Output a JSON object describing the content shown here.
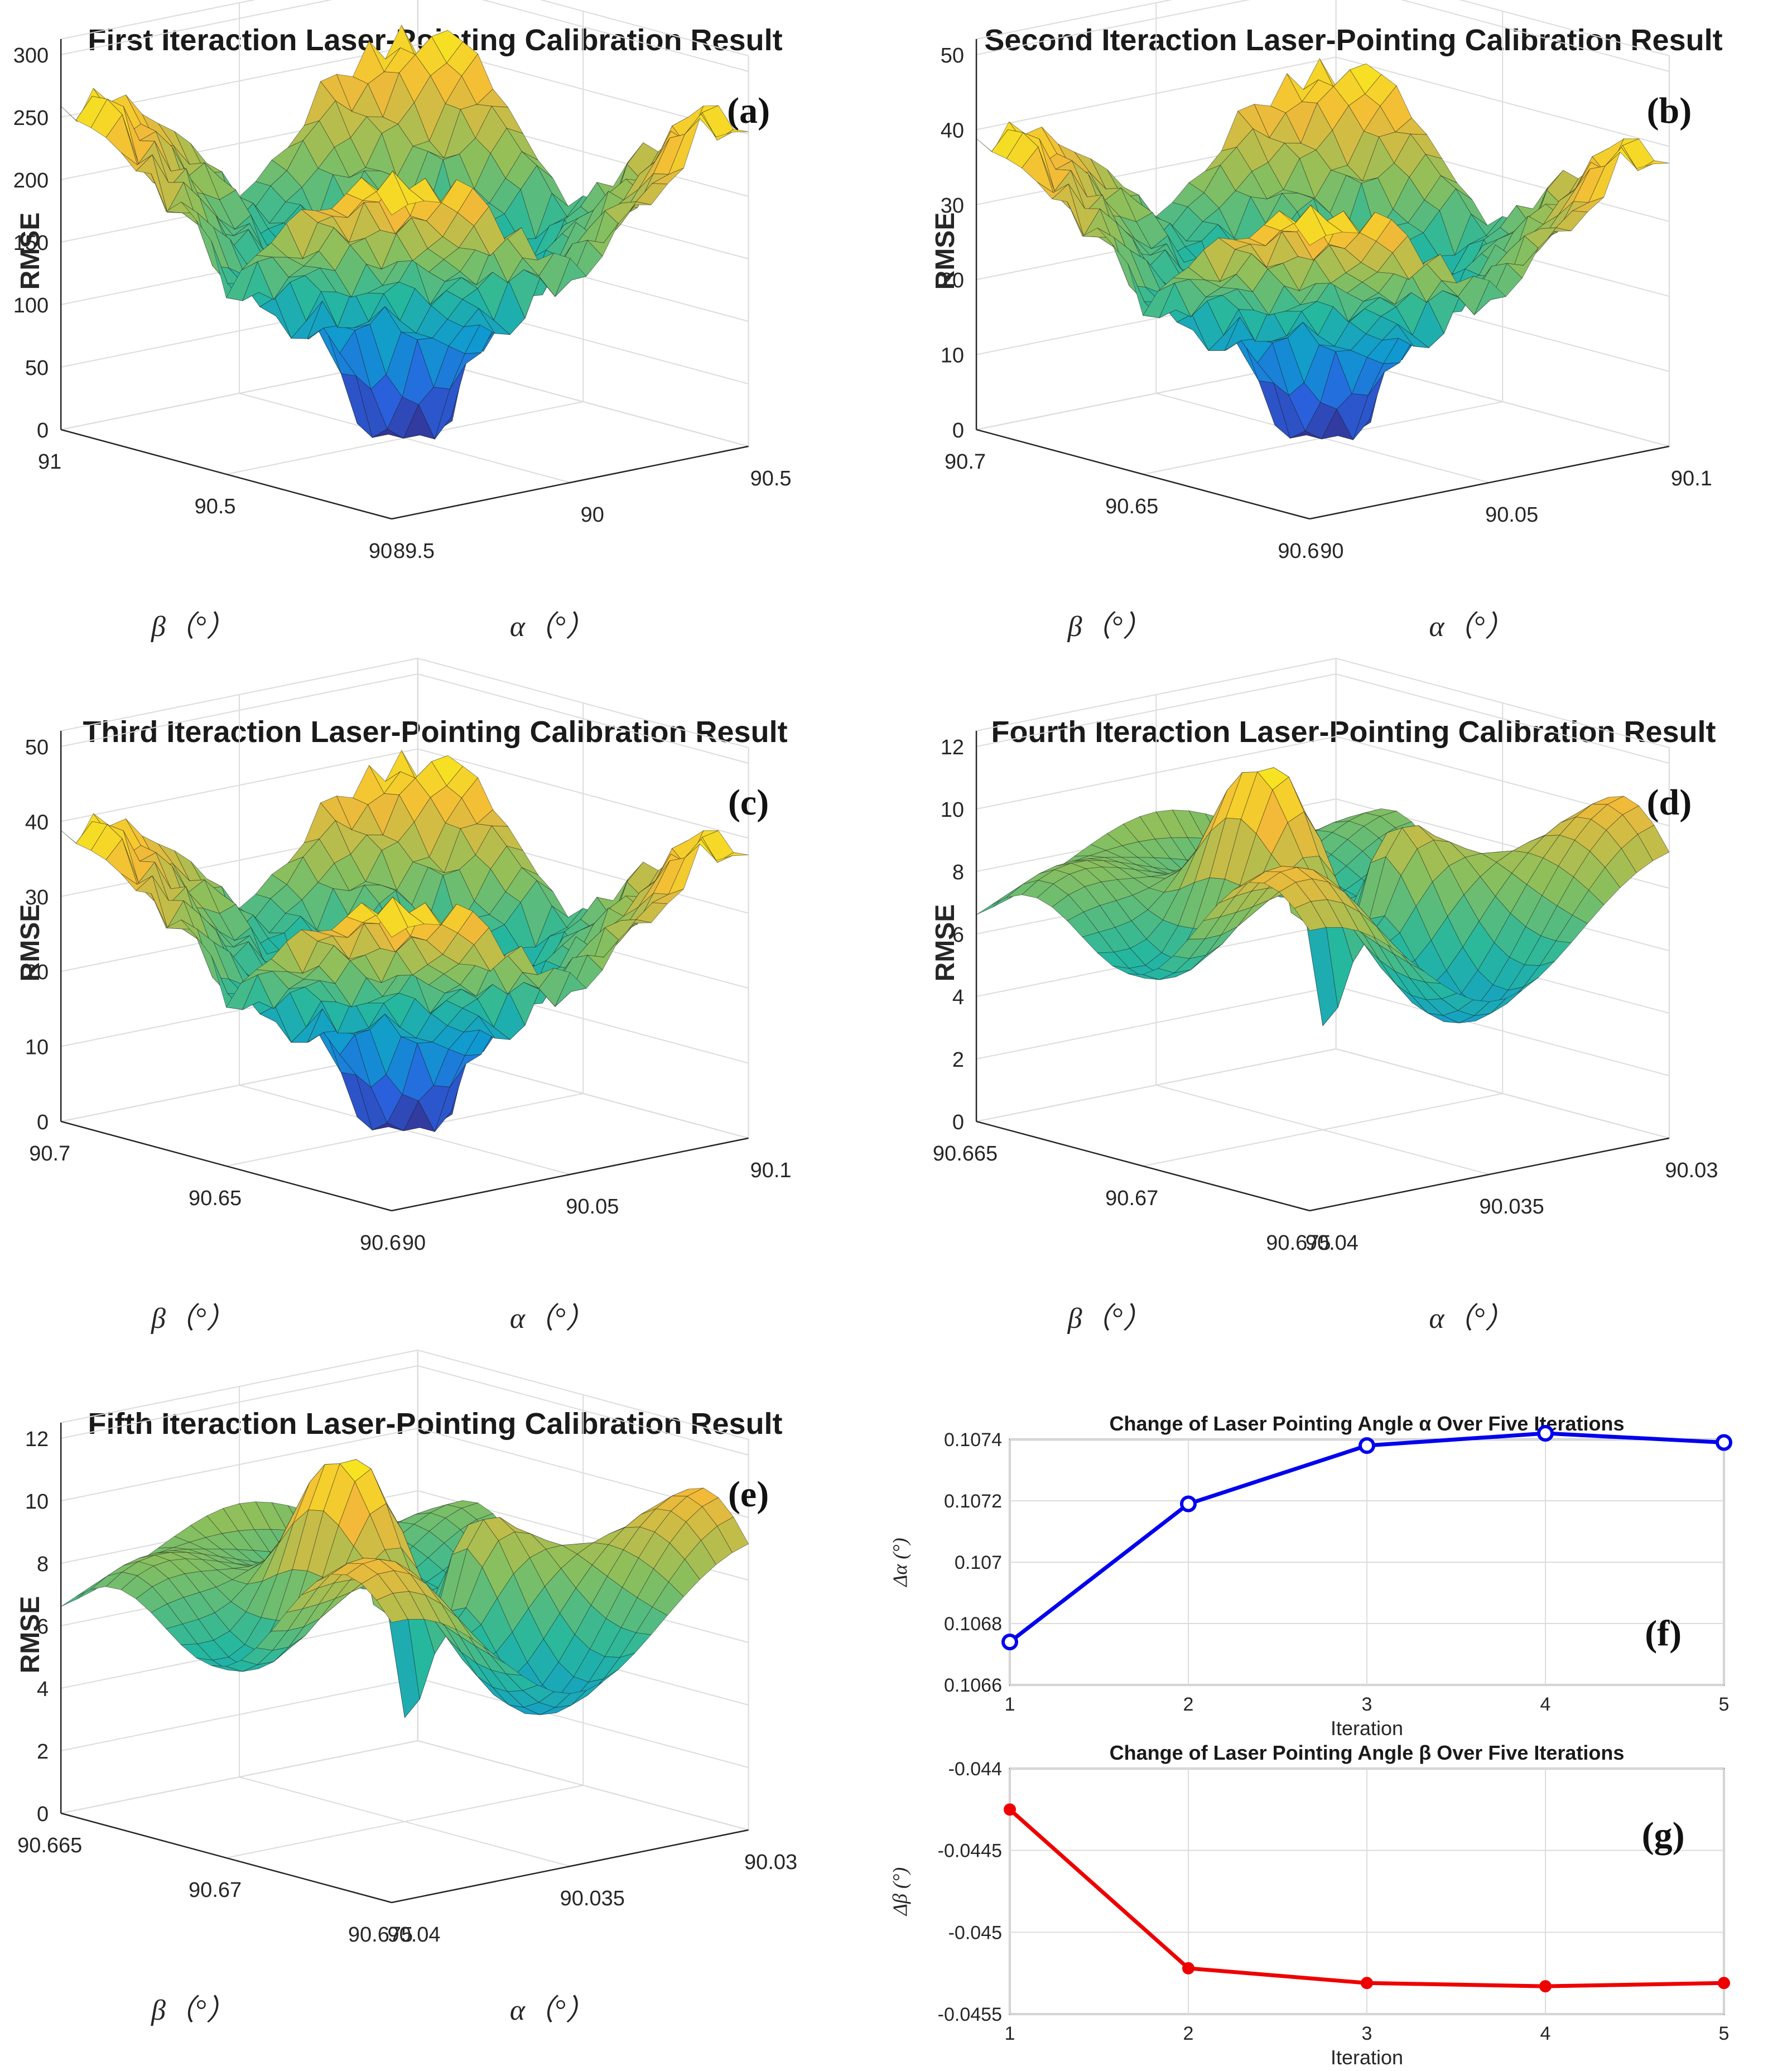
{
  "chart_data": [
    {
      "id": "a",
      "type": "surface",
      "title": "First Iteraction Laser-Pointing Calibration Result",
      "panel_letter": "(a)",
      "zlabel": "RMSE",
      "xlabel": "β（°）",
      "ylabel": "α（°）",
      "zlim": [
        0,
        300
      ],
      "zticks": [
        "0",
        "50",
        "100",
        "150",
        "200",
        "250",
        "300"
      ],
      "beta_ticks": [
        "91",
        "90.5",
        "90"
      ],
      "alpha_ticks": [
        "89.5",
        "90",
        "90.5"
      ],
      "surface_max": 280,
      "min_rmse": 20,
      "style": "rough"
    },
    {
      "id": "b",
      "type": "surface",
      "title": "Second Iteraction Laser-Pointing Calibration Result",
      "panel_letter": "(b)",
      "zlabel": "RMSE",
      "xlabel": "β（°）",
      "ylabel": "α（°）",
      "zlim": [
        0,
        50
      ],
      "zticks": [
        "0",
        "10",
        "20",
        "30",
        "40",
        "50"
      ],
      "beta_ticks": [
        "90.7",
        "90.65",
        "90.6"
      ],
      "alpha_ticks": [
        "90",
        "90.05",
        "90.1"
      ],
      "surface_max": 42,
      "min_rmse": 0,
      "style": "rough"
    },
    {
      "id": "c",
      "type": "surface",
      "title": "Third Iteraction Laser-Pointing Calibration Result",
      "panel_letter": "(c)",
      "zlabel": "RMSE",
      "xlabel": "β（°）",
      "ylabel": "α（°）",
      "zlim": [
        0,
        50
      ],
      "zticks": [
        "0",
        "10",
        "20",
        "30",
        "40",
        "50"
      ],
      "beta_ticks": [
        "90.7",
        "90.65",
        "90.6"
      ],
      "alpha_ticks": [
        "90",
        "90.05",
        "90.1"
      ],
      "surface_max": 42,
      "min_rmse": 0,
      "style": "rough"
    },
    {
      "id": "d",
      "type": "surface",
      "title": "Fourth Iteraction Laser-Pointing Calibration Result",
      "panel_letter": "(d)",
      "zlabel": "RMSE",
      "xlabel": "β（°）",
      "ylabel": "α（°）",
      "zlim": [
        0,
        12
      ],
      "zticks": [
        "0",
        "2",
        "4",
        "6",
        "8",
        "10",
        "12"
      ],
      "beta_ticks": [
        "90.665",
        "90.67",
        "90.675"
      ],
      "alpha_ticks": [
        "90.04",
        "90.035",
        "90.03"
      ],
      "surface_max": 12.5,
      "min_rmse": 0.8,
      "style": "smooth"
    },
    {
      "id": "e",
      "type": "surface",
      "title": "Fifth Iteraction Laser-Pointing Calibration Result",
      "panel_letter": "(e)",
      "zlabel": "RMSE",
      "xlabel": "β（°）",
      "ylabel": "α（°）",
      "zlim": [
        0,
        12
      ],
      "zticks": [
        "0",
        "2",
        "4",
        "6",
        "8",
        "10",
        "12"
      ],
      "beta_ticks": [
        "90.665",
        "90.67",
        "90.675"
      ],
      "alpha_ticks": [
        "90.04",
        "90.035",
        "90.03"
      ],
      "surface_max": 12.5,
      "min_rmse": 0.5,
      "style": "smooth"
    },
    {
      "id": "f",
      "type": "line",
      "title": "Change of Laser Pointing Angle α Over Five Iterations",
      "panel_letter": "(f)",
      "xlabel": "Iteration",
      "ylabel": "Δα (°)",
      "x": [
        1,
        2,
        3,
        4,
        5
      ],
      "y": [
        0.10674,
        0.10719,
        0.10738,
        0.10742,
        0.10739
      ],
      "xlim": [
        1,
        5
      ],
      "ylim": [
        0.1066,
        0.1074
      ],
      "xticks": [
        "1",
        "2",
        "3",
        "4",
        "5"
      ],
      "yticks": [
        "0.1066",
        "0.1068",
        "0.107",
        "0.1072",
        "0.1074"
      ],
      "color": "#0000ee",
      "marker": "open-circle"
    },
    {
      "id": "g",
      "type": "line",
      "title": "Change of Laser Pointing Angle β Over Five Iterations",
      "panel_letter": "(g)",
      "xlabel": "Iteration",
      "ylabel": "Δβ (°)",
      "x": [
        1,
        2,
        3,
        4,
        5
      ],
      "y": [
        -0.04425,
        -0.04522,
        -0.04531,
        -0.04533,
        -0.04531
      ],
      "xlim": [
        1,
        5
      ],
      "ylim": [
        -0.0455,
        -0.044
      ],
      "xticks": [
        "1",
        "2",
        "3",
        "4",
        "5"
      ],
      "yticks": [
        "-0.0455",
        "-0.045",
        "-0.0445",
        "-0.044"
      ],
      "color": "#ee0000",
      "marker": "filled-circle"
    }
  ]
}
